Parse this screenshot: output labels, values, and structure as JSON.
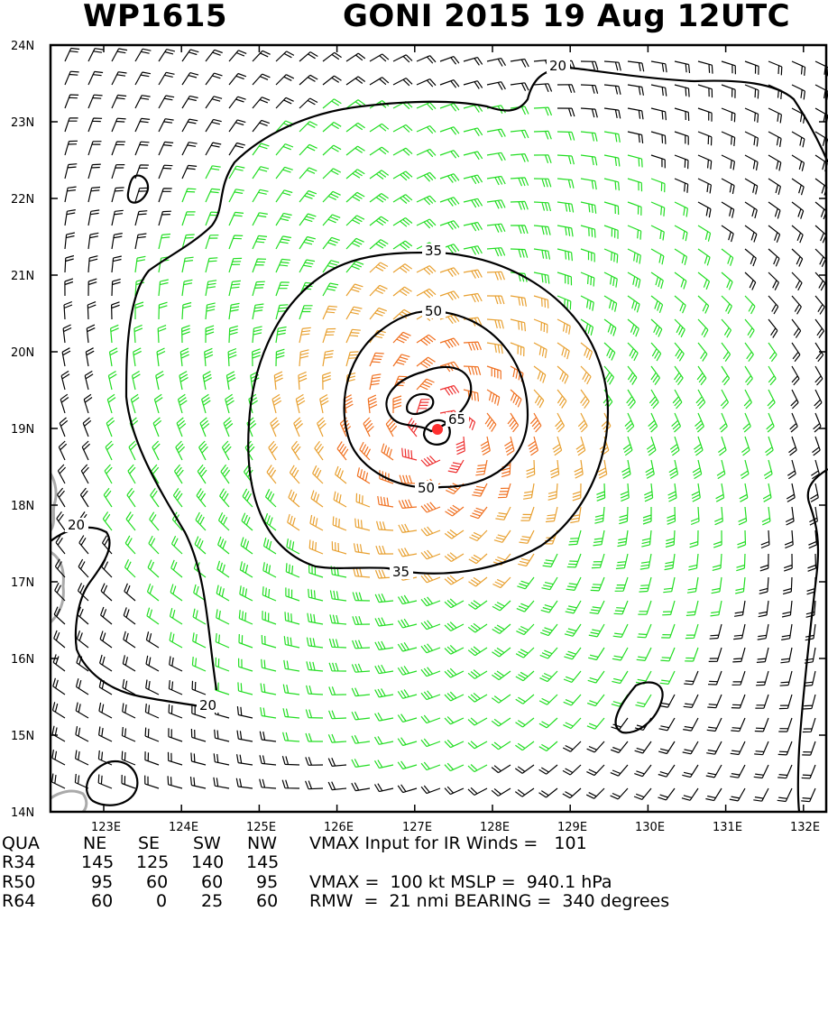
{
  "header": {
    "storm_id": "WP1615",
    "storm_title": "GONI 2015 19 Aug 12UTC"
  },
  "map": {
    "lat_labels": [
      "24N",
      "23N",
      "22N",
      "21N",
      "20N",
      "19N",
      "18N",
      "17N",
      "16N",
      "15N",
      "14N"
    ],
    "lon_labels": [
      "123E",
      "124E",
      "125E",
      "126E",
      "127E",
      "128E",
      "129E",
      "130E",
      "131E",
      "132E"
    ],
    "contour_labels": {
      "c20_top": "20",
      "c20_left": "20",
      "c20_bottom": "20",
      "c35_top": "35",
      "c35_bottom": "35",
      "c50_top": "50",
      "c50_bottom": "50",
      "c65": "65"
    },
    "colors": {
      "barb_black": "#000000",
      "barb_green": "#22dd22",
      "barb_orange_light": "#e8a030",
      "barb_orange": "#f07020",
      "barb_red": "#ee3030",
      "land": "#aaaaaa",
      "center": "#ff3030"
    }
  },
  "table": {
    "header": [
      "QUA",
      "NE",
      "SE",
      "SW",
      "NW"
    ],
    "rows": [
      [
        "R34",
        "145",
        "125",
        "140",
        "145"
      ],
      [
        "R50",
        "95",
        "60",
        "60",
        "95"
      ],
      [
        "R64",
        "60",
        "0",
        "25",
        "60"
      ]
    ]
  },
  "notes": {
    "line1": "VMAX Input for IR Winds =   101",
    "line3": "VMAX =  100 kt MSLP =  940.1 hPa",
    "line4": "RMW  =  21 nmi BEARING =  340 degrees"
  }
}
